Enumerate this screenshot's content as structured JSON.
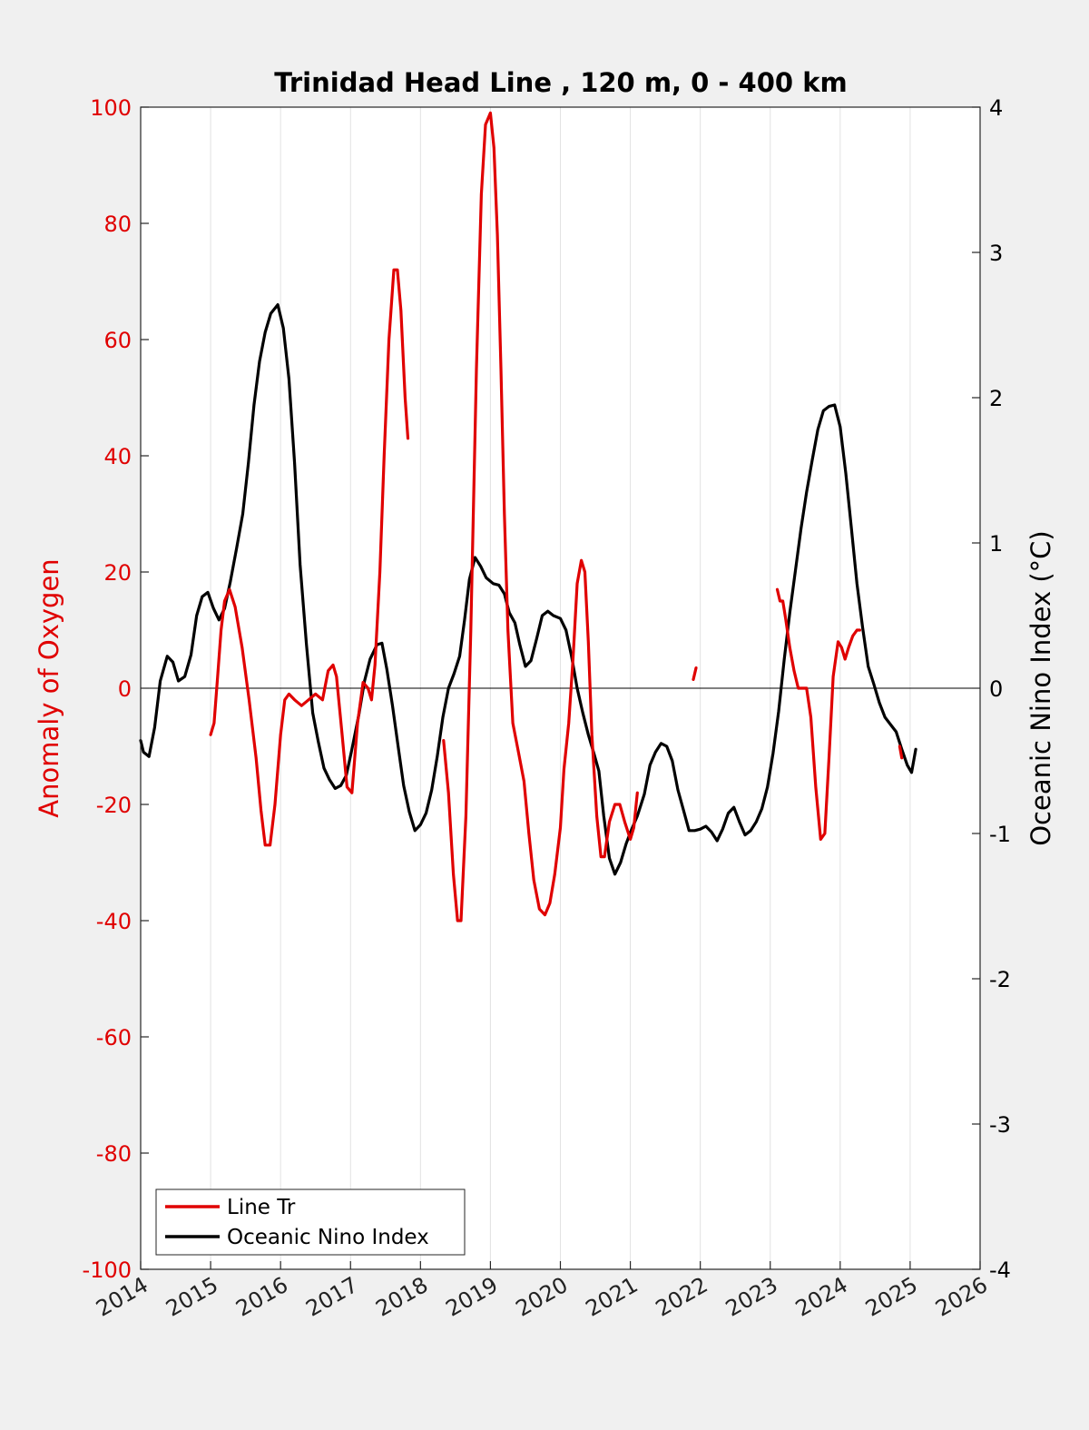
{
  "chart_data": {
    "type": "line",
    "title": "Trinidad Head Line , 120 m, 0 - 400 km",
    "xlabel": "",
    "ylabel_left": "Anomaly of Oxygen",
    "ylabel_right": "Oceanic Nino Index (°C)",
    "xlim": [
      2014,
      2026
    ],
    "ylim_left": [
      -100,
      100
    ],
    "ylim_right": [
      -4,
      4
    ],
    "x_ticks": [
      "2014",
      "2015",
      "2016",
      "2017",
      "2018",
      "2019",
      "2020",
      "2021",
      "2022",
      "2023",
      "2024",
      "2025",
      "2026"
    ],
    "y_ticks_left": [
      "100",
      "80",
      "60",
      "40",
      "20",
      "0",
      "-20",
      "-40",
      "-60",
      "-80",
      "-100"
    ],
    "y_ticks_right": [
      "4",
      "3",
      "2",
      "1",
      "0",
      "-1",
      "-2",
      "-3",
      "-4"
    ],
    "grid": "x-only",
    "legend_position": "bottom-left",
    "colors": {
      "oxygen": "#e00000",
      "oni": "#000000",
      "left_axis": "#e00000",
      "right_axis": "#000000",
      "grid": "#e2e2e2"
    },
    "series": [
      {
        "name": "Line Tr",
        "axis": "left",
        "segments": [
          [
            [
              2015.0,
              -8
            ],
            [
              2015.05,
              -6
            ],
            [
              2015.1,
              2
            ],
            [
              2015.15,
              10
            ],
            [
              2015.2,
              15
            ],
            [
              2015.27,
              17
            ],
            [
              2015.35,
              14
            ],
            [
              2015.45,
              7
            ],
            [
              2015.55,
              -2
            ],
            [
              2015.65,
              -12
            ],
            [
              2015.72,
              -21
            ],
            [
              2015.78,
              -27
            ],
            [
              2015.85,
              -27
            ],
            [
              2015.92,
              -20
            ],
            [
              2016.0,
              -8
            ],
            [
              2016.06,
              -2
            ],
            [
              2016.12,
              -1
            ],
            [
              2016.2,
              -2
            ],
            [
              2016.3,
              -3
            ],
            [
              2016.4,
              -2
            ],
            [
              2016.5,
              -1
            ],
            [
              2016.6,
              -2
            ],
            [
              2016.68,
              3
            ],
            [
              2016.75,
              4
            ],
            [
              2016.8,
              2
            ],
            [
              2016.88,
              -8
            ],
            [
              2016.95,
              -17
            ],
            [
              2017.02,
              -18
            ],
            [
              2017.1,
              -6
            ],
            [
              2017.18,
              1
            ],
            [
              2017.25,
              0
            ],
            [
              2017.3,
              -2
            ],
            [
              2017.35,
              4
            ],
            [
              2017.42,
              20
            ],
            [
              2017.48,
              40
            ],
            [
              2017.55,
              60
            ],
            [
              2017.62,
              72
            ],
            [
              2017.67,
              72
            ],
            [
              2017.72,
              65
            ],
            [
              2017.78,
              50
            ],
            [
              2017.82,
              43
            ]
          ],
          [
            [
              2018.33,
              -9
            ],
            [
              2018.4,
              -18
            ],
            [
              2018.47,
              -32
            ],
            [
              2018.53,
              -40
            ],
            [
              2018.58,
              -40
            ],
            [
              2018.65,
              -22
            ],
            [
              2018.72,
              10
            ],
            [
              2018.8,
              55
            ],
            [
              2018.87,
              85
            ],
            [
              2018.93,
              97
            ],
            [
              2019.0,
              99
            ],
            [
              2019.05,
              93
            ],
            [
              2019.1,
              78
            ],
            [
              2019.15,
              55
            ],
            [
              2019.2,
              30
            ],
            [
              2019.25,
              10
            ],
            [
              2019.32,
              -6
            ],
            [
              2019.4,
              -11
            ],
            [
              2019.48,
              -16
            ],
            [
              2019.55,
              -25
            ],
            [
              2019.62,
              -33
            ],
            [
              2019.7,
              -38
            ],
            [
              2019.78,
              -39
            ],
            [
              2019.85,
              -37
            ],
            [
              2019.92,
              -32
            ],
            [
              2020.0,
              -24
            ],
            [
              2020.05,
              -14
            ],
            [
              2020.12,
              -6
            ],
            [
              2020.18,
              5
            ],
            [
              2020.24,
              18
            ],
            [
              2020.3,
              22
            ],
            [
              2020.35,
              20
            ],
            [
              2020.4,
              8
            ],
            [
              2020.45,
              -8
            ],
            [
              2020.52,
              -22
            ],
            [
              2020.58,
              -29
            ],
            [
              2020.63,
              -29
            ],
            [
              2020.7,
              -23
            ],
            [
              2020.78,
              -20
            ],
            [
              2020.85,
              -20
            ],
            [
              2020.92,
              -23
            ],
            [
              2021.0,
              -26
            ],
            [
              2021.05,
              -24
            ],
            [
              2021.1,
              -18
            ]
          ],
          [
            [
              2021.9,
              1.5
            ],
            [
              2021.94,
              3.5
            ]
          ],
          [
            [
              2023.1,
              17
            ],
            [
              2023.14,
              15
            ],
            [
              2023.18,
              15
            ],
            [
              2023.22,
              12
            ],
            [
              2023.28,
              7
            ],
            [
              2023.34,
              3
            ],
            [
              2023.4,
              0
            ],
            [
              2023.46,
              0
            ],
            [
              2023.52,
              0
            ],
            [
              2023.58,
              -5
            ],
            [
              2023.65,
              -17
            ],
            [
              2023.72,
              -26
            ],
            [
              2023.78,
              -25
            ],
            [
              2023.84,
              -12
            ],
            [
              2023.9,
              2
            ],
            [
              2023.97,
              8
            ],
            [
              2024.02,
              7
            ],
            [
              2024.07,
              5
            ],
            [
              2024.12,
              7
            ],
            [
              2024.18,
              9
            ],
            [
              2024.24,
              10
            ],
            [
              2024.28,
              10
            ]
          ],
          [
            [
              2024.85,
              -10
            ],
            [
              2024.88,
              -12
            ]
          ]
        ]
      },
      {
        "name": "Oceanic Nino Index",
        "axis": "right",
        "points": [
          [
            2014.0,
            -0.36
          ],
          [
            2014.04,
            -0.44
          ],
          [
            2014.12,
            -0.47
          ],
          [
            2014.2,
            -0.27
          ],
          [
            2014.28,
            0.05
          ],
          [
            2014.38,
            0.22
          ],
          [
            2014.46,
            0.18
          ],
          [
            2014.54,
            0.05
          ],
          [
            2014.63,
            0.08
          ],
          [
            2014.72,
            0.23
          ],
          [
            2014.8,
            0.5
          ],
          [
            2014.88,
            0.63
          ],
          [
            2014.96,
            0.66
          ],
          [
            2015.04,
            0.55
          ],
          [
            2015.12,
            0.47
          ],
          [
            2015.2,
            0.55
          ],
          [
            2015.28,
            0.73
          ],
          [
            2015.37,
            0.96
          ],
          [
            2015.46,
            1.2
          ],
          [
            2015.54,
            1.55
          ],
          [
            2015.62,
            1.95
          ],
          [
            2015.7,
            2.25
          ],
          [
            2015.78,
            2.45
          ],
          [
            2015.86,
            2.58
          ],
          [
            2015.96,
            2.64
          ],
          [
            2016.04,
            2.48
          ],
          [
            2016.12,
            2.13
          ],
          [
            2016.2,
            1.55
          ],
          [
            2016.28,
            0.85
          ],
          [
            2016.37,
            0.3
          ],
          [
            2016.46,
            -0.17
          ],
          [
            2016.54,
            -0.37
          ],
          [
            2016.62,
            -0.55
          ],
          [
            2016.7,
            -0.63
          ],
          [
            2016.78,
            -0.69
          ],
          [
            2016.86,
            -0.67
          ],
          [
            2016.94,
            -0.6
          ],
          [
            2017.02,
            -0.42
          ],
          [
            2017.12,
            -0.18
          ],
          [
            2017.2,
            0.05
          ],
          [
            2017.28,
            0.2
          ],
          [
            2017.38,
            0.3
          ],
          [
            2017.45,
            0.31
          ],
          [
            2017.52,
            0.13
          ],
          [
            2017.6,
            -0.12
          ],
          [
            2017.68,
            -0.4
          ],
          [
            2017.76,
            -0.67
          ],
          [
            2017.84,
            -0.85
          ],
          [
            2017.92,
            -0.98
          ],
          [
            2018.0,
            -0.94
          ],
          [
            2018.08,
            -0.86
          ],
          [
            2018.16,
            -0.7
          ],
          [
            2018.24,
            -0.47
          ],
          [
            2018.32,
            -0.2
          ],
          [
            2018.4,
            0.0
          ],
          [
            2018.48,
            0.1
          ],
          [
            2018.56,
            0.22
          ],
          [
            2018.63,
            0.47
          ],
          [
            2018.7,
            0.75
          ],
          [
            2018.78,
            0.9
          ],
          [
            2018.86,
            0.84
          ],
          [
            2018.94,
            0.76
          ],
          [
            2019.04,
            0.72
          ],
          [
            2019.12,
            0.71
          ],
          [
            2019.2,
            0.65
          ],
          [
            2019.27,
            0.52
          ],
          [
            2019.35,
            0.45
          ],
          [
            2019.42,
            0.3
          ],
          [
            2019.5,
            0.15
          ],
          [
            2019.58,
            0.19
          ],
          [
            2019.66,
            0.34
          ],
          [
            2019.74,
            0.5
          ],
          [
            2019.82,
            0.53
          ],
          [
            2019.9,
            0.5
          ],
          [
            2020.0,
            0.48
          ],
          [
            2020.08,
            0.4
          ],
          [
            2020.16,
            0.22
          ],
          [
            2020.24,
            0.0
          ],
          [
            2020.32,
            -0.17
          ],
          [
            2020.4,
            -0.32
          ],
          [
            2020.48,
            -0.45
          ],
          [
            2020.55,
            -0.57
          ],
          [
            2020.62,
            -0.88
          ],
          [
            2020.7,
            -1.17
          ],
          [
            2020.78,
            -1.28
          ],
          [
            2020.86,
            -1.2
          ],
          [
            2020.94,
            -1.07
          ],
          [
            2021.02,
            -0.97
          ],
          [
            2021.1,
            -0.88
          ],
          [
            2021.2,
            -0.73
          ],
          [
            2021.28,
            -0.53
          ],
          [
            2021.36,
            -0.44
          ],
          [
            2021.44,
            -0.38
          ],
          [
            2021.52,
            -0.4
          ],
          [
            2021.6,
            -0.5
          ],
          [
            2021.68,
            -0.7
          ],
          [
            2021.76,
            -0.84
          ],
          [
            2021.84,
            -0.98
          ],
          [
            2021.92,
            -0.98
          ],
          [
            2022.0,
            -0.97
          ],
          [
            2022.08,
            -0.95
          ],
          [
            2022.16,
            -0.99
          ],
          [
            2022.24,
            -1.05
          ],
          [
            2022.32,
            -0.97
          ],
          [
            2022.4,
            -0.86
          ],
          [
            2022.48,
            -0.82
          ],
          [
            2022.56,
            -0.92
          ],
          [
            2022.64,
            -1.01
          ],
          [
            2022.72,
            -0.98
          ],
          [
            2022.8,
            -0.92
          ],
          [
            2022.88,
            -0.83
          ],
          [
            2022.96,
            -0.68
          ],
          [
            2023.04,
            -0.45
          ],
          [
            2023.12,
            -0.16
          ],
          [
            2023.2,
            0.2
          ],
          [
            2023.28,
            0.52
          ],
          [
            2023.36,
            0.81
          ],
          [
            2023.44,
            1.1
          ],
          [
            2023.52,
            1.35
          ],
          [
            2023.6,
            1.57
          ],
          [
            2023.68,
            1.78
          ],
          [
            2023.76,
            1.91
          ],
          [
            2023.84,
            1.94
          ],
          [
            2023.92,
            1.95
          ],
          [
            2024.0,
            1.8
          ],
          [
            2024.08,
            1.48
          ],
          [
            2024.16,
            1.1
          ],
          [
            2024.24,
            0.72
          ],
          [
            2024.32,
            0.42
          ],
          [
            2024.4,
            0.15
          ],
          [
            2024.48,
            0.03
          ],
          [
            2024.56,
            -0.1
          ],
          [
            2024.64,
            -0.2
          ],
          [
            2024.72,
            -0.25
          ],
          [
            2024.8,
            -0.3
          ],
          [
            2024.88,
            -0.42
          ],
          [
            2024.96,
            -0.53
          ],
          [
            2025.02,
            -0.58
          ],
          [
            2025.08,
            -0.42
          ]
        ]
      }
    ]
  }
}
